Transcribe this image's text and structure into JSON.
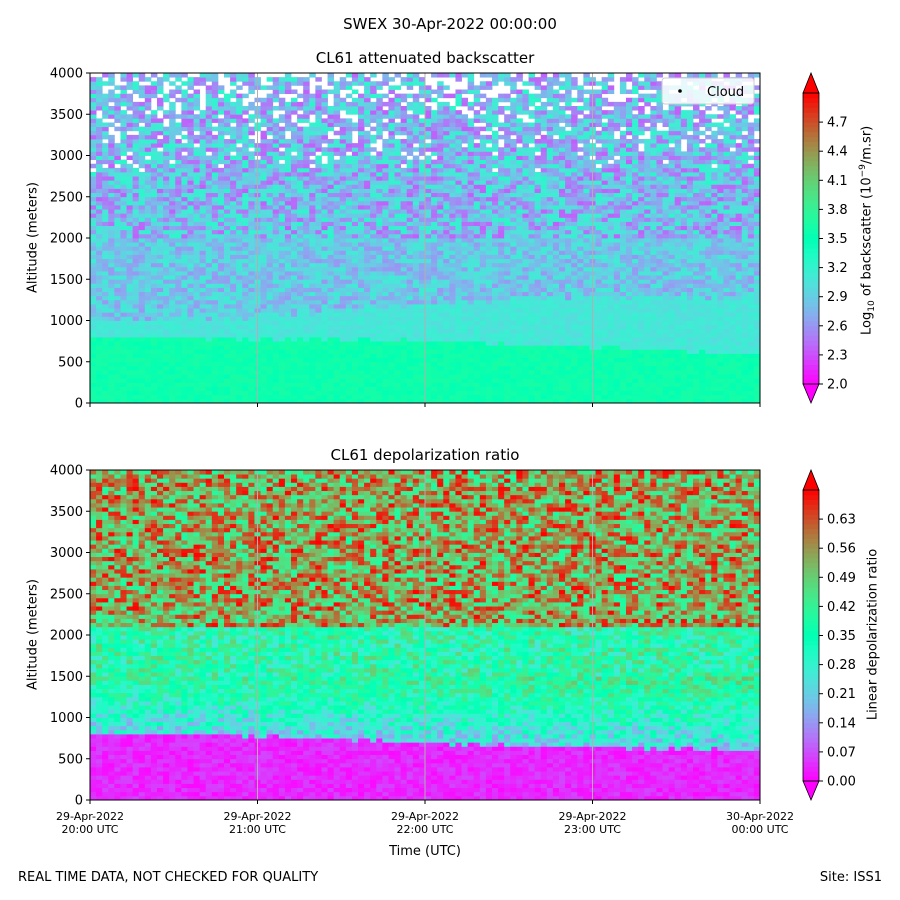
{
  "figure": {
    "title": "SWEX 30-Apr-2022 00:00:00",
    "footer_left": "REAL TIME DATA, NOT CHECKED FOR QUALITY",
    "footer_right": "Site: ISS1",
    "xlabel": "Time (UTC)"
  },
  "chart_data": [
    {
      "type": "heatmap",
      "title": "CL61 attenuated backscatter",
      "ylabel": "Altitude (meters)",
      "ylim": [
        0,
        4000
      ],
      "yticks": [
        "0",
        "500",
        "1000",
        "1500",
        "2000",
        "2500",
        "3000",
        "3500",
        "4000"
      ],
      "xticks": [],
      "legend": {
        "label": "Cloud",
        "placement": "top-right"
      },
      "colorbar": {
        "label_main": "Log",
        "label_sub": "10",
        "label_rest": " of backscatter (10",
        "label_sup": "−9",
        "label_end": "/m.sr)",
        "min": 2.0,
        "max": 5.0,
        "ticks": [
          "2.0",
          "2.3",
          "2.6",
          "2.9",
          "3.2",
          "3.5",
          "3.8",
          "4.1",
          "4.4",
          "4.7"
        ],
        "colormap": "rainbow",
        "extend": "both"
      },
      "grid": "vertical lines at each hour",
      "description_of_field": "mixed layer top ~800 m falling to ~600 m; elevated layer up to ~1300 m; noisy above 2000 m",
      "layers": [
        {
          "x": [
            "20:00",
            "21:00",
            "22:00",
            "23:00",
            "00:00"
          ],
          "boundary_layer_top_m": [
            800,
            780,
            760,
            680,
            600
          ]
        },
        {
          "x": [
            "20:00",
            "21:00",
            "22:00",
            "23:00",
            "00:00"
          ],
          "elevated_layer_top_m": [
            1000,
            1020,
            1200,
            1300,
            1250
          ]
        }
      ]
    },
    {
      "type": "heatmap",
      "title": "CL61 depolarization ratio",
      "ylabel": "Altitude (meters)",
      "ylim": [
        0,
        4000
      ],
      "yticks": [
        "0",
        "500",
        "1000",
        "1500",
        "2000",
        "2500",
        "3000",
        "3500",
        "4000"
      ],
      "xticks": [
        "29-Apr-2022\n20:00 UTC",
        "29-Apr-2022\n21:00 UTC",
        "29-Apr-2022\n22:00 UTC",
        "29-Apr-2022\n23:00 UTC",
        "30-Apr-2022\n00:00 UTC"
      ],
      "colorbar": {
        "label": "Linear depolarization ratio",
        "min": 0.0,
        "max": 0.7,
        "ticks": [
          "0.00",
          "0.07",
          "0.14",
          "0.21",
          "0.28",
          "0.35",
          "0.42",
          "0.49",
          "0.56",
          "0.63"
        ],
        "colormap": "rainbow",
        "extend": "both"
      },
      "grid": "vertical lines at each hour",
      "layers": [
        {
          "x": [
            "20:00",
            "21:00",
            "22:00",
            "23:00",
            "00:00"
          ],
          "low_depol_top_m": [
            800,
            780,
            700,
            650,
            600
          ]
        }
      ]
    }
  ],
  "colors": {
    "background": "#ffffff",
    "axis": "#000000",
    "grid": "#b0b0b0"
  }
}
